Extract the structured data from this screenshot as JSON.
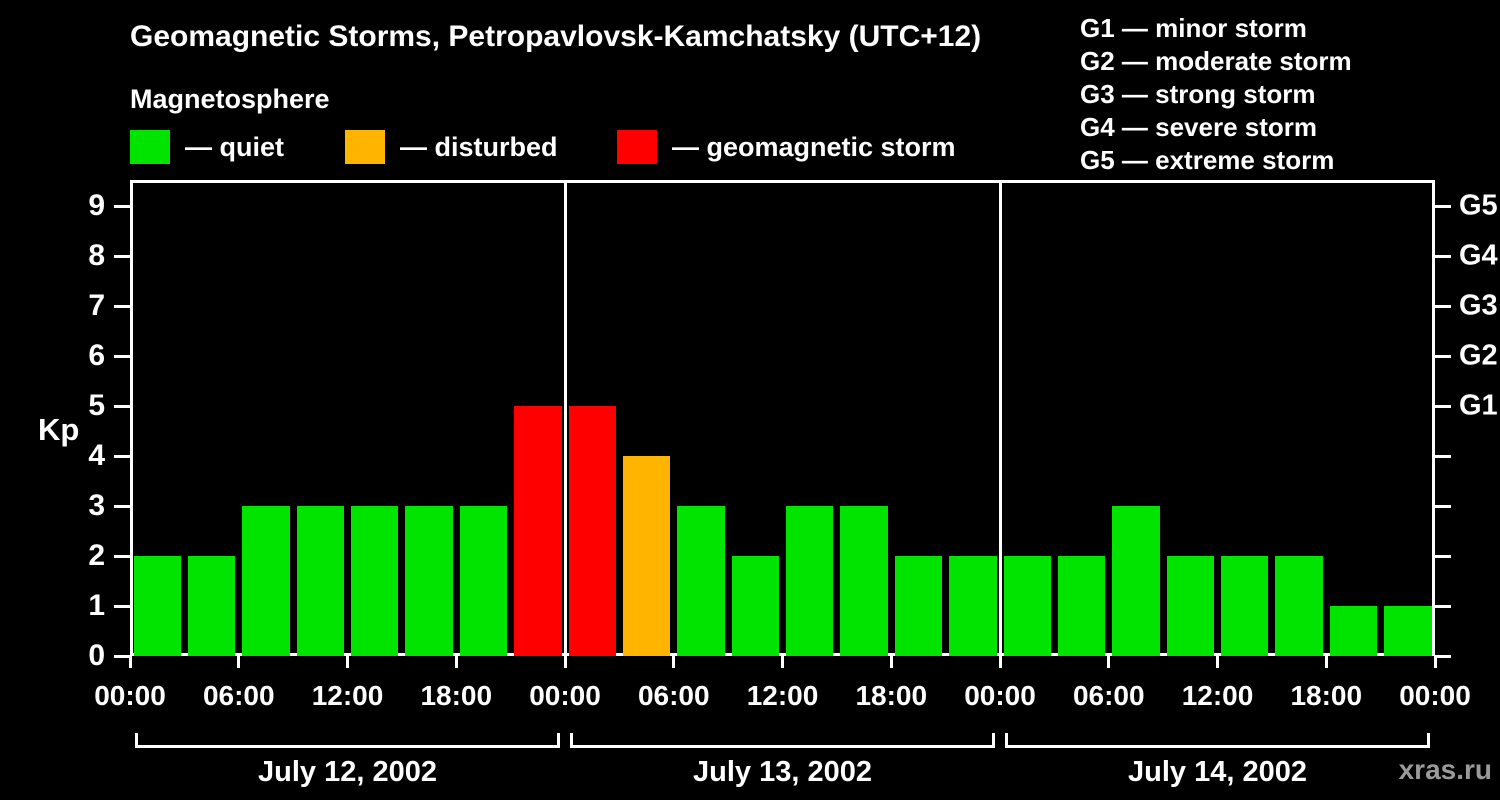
{
  "title": "Geomagnetic Storms, Petropavlovsk-Kamchatsky (UTC+12)",
  "subtitle": "Magnetosphere",
  "legend": {
    "quiet": "— quiet",
    "disturbed": "— disturbed",
    "storm": "— geomagnetic storm"
  },
  "storm_scale": [
    "G1 — minor storm",
    "G2 — moderate storm",
    "G3 — strong storm",
    "G4 — severe storm",
    "G5 — extreme storm"
  ],
  "watermark": "xras.ru",
  "colors": {
    "quiet": "#00e400",
    "disturbed": "#ffb400",
    "storm": "#ff0000",
    "axis": "#ffffff",
    "background": "#000000",
    "watermark": "#9a9a9a"
  },
  "chart_data": {
    "type": "bar",
    "title": "Geomagnetic Storms, Petropavlovsk-Kamchatsky (UTC+12)",
    "ylabel": "Kp",
    "ylim": [
      0,
      9.5
    ],
    "yticks": [
      0,
      1,
      2,
      3,
      4,
      5,
      6,
      7,
      8,
      9
    ],
    "grid": false,
    "bar_hours": 3,
    "right_axis_labels": [
      {
        "label": "G1",
        "y": 5
      },
      {
        "label": "G2",
        "y": 6
      },
      {
        "label": "G3",
        "y": 7
      },
      {
        "label": "G4",
        "y": 8
      },
      {
        "label": "G5",
        "y": 9
      }
    ],
    "x_tick_labels": [
      "00:00",
      "06:00",
      "12:00",
      "18:00",
      "00:00",
      "06:00",
      "12:00",
      "18:00",
      "00:00",
      "06:00",
      "12:00",
      "18:00",
      "00:00"
    ],
    "color_rule": {
      "quiet_max_kp": 3,
      "disturbed_kp": 4,
      "storm_min_kp": 5
    },
    "days": [
      {
        "date": "July 12, 2002",
        "values": [
          2,
          2,
          3,
          3,
          3,
          3,
          3,
          5
        ]
      },
      {
        "date": "July 13, 2002",
        "values": [
          5,
          4,
          3,
          2,
          3,
          3,
          2,
          2
        ]
      },
      {
        "date": "July 14, 2002",
        "values": [
          2,
          2,
          3,
          2,
          2,
          2,
          1,
          1
        ]
      }
    ]
  }
}
